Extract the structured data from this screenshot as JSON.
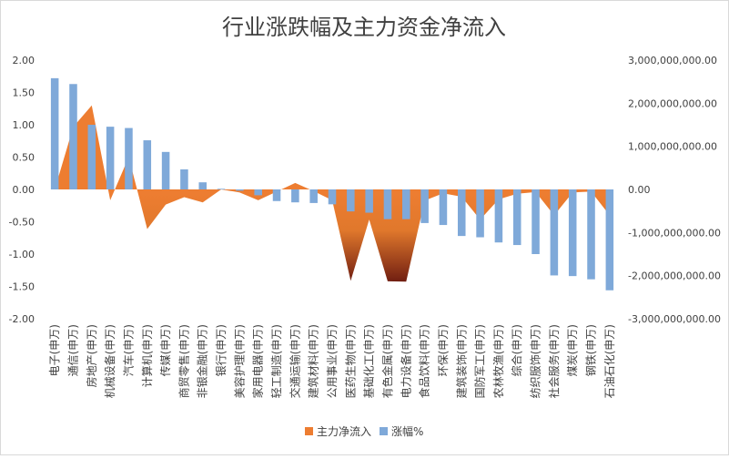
{
  "chart_data": {
    "type": "bar",
    "title": "行业涨跌幅及主力资金净流入",
    "categories": [
      "电子(申万)",
      "通信(申万)",
      "房地产(申万)",
      "机械设备(申万)",
      "汽车(申万)",
      "计算机(申万)",
      "传媒(申万)",
      "商贸零售(申万)",
      "非银金融(申万)",
      "银行(申万)",
      "美容护理(申万)",
      "家用电器(申万)",
      "轻工制造(申万)",
      "交通运输(申万)",
      "建筑材料(申万)",
      "公用事业(申万)",
      "医药生物(申万)",
      "基础化工(申万)",
      "有色金属(申万)",
      "电力设备(申万)",
      "食品饮料(申万)",
      "环保(申万)",
      "建筑装饰(申万)",
      "国防军工(申万)",
      "农林牧渔(申万)",
      "综合(申万)",
      "纺织服饰(申万)",
      "社会服务(申万)",
      "煤炭(申万)",
      "钢铁(申万)",
      "石油石化(申万)"
    ],
    "series": [
      {
        "name": "主力净流入",
        "chart_type": "area",
        "axis": "right",
        "color": "#ED7D31",
        "values": [
          0,
          1450000000,
          1950000000,
          -250000000,
          750000000,
          -920000000,
          -350000000,
          -180000000,
          -300000000,
          0,
          -70000000,
          -250000000,
          -50000000,
          150000000,
          -40000000,
          -250000000,
          -2120000000,
          -700000000,
          -2130000000,
          -2140000000,
          -260000000,
          -90000000,
          -170000000,
          -700000000,
          -230000000,
          -100000000,
          -60000000,
          -600000000,
          -70000000,
          -50000000,
          -600000000
        ]
      },
      {
        "name": "涨幅%",
        "chart_type": "bar",
        "axis": "left",
        "color": "#7FA9D9",
        "values": [
          1.72,
          1.63,
          1.0,
          0.97,
          0.95,
          0.76,
          0.58,
          0.31,
          0.11,
          0.01,
          -0.02,
          -0.09,
          -0.18,
          -0.2,
          -0.21,
          -0.23,
          -0.34,
          -0.36,
          -0.46,
          -0.46,
          -0.52,
          -0.55,
          -0.72,
          -0.74,
          -0.82,
          -0.86,
          -1.0,
          -1.33,
          -1.34,
          -1.39,
          -1.56
        ]
      }
    ],
    "left_axis": {
      "ylim": [
        -2.0,
        2.0
      ],
      "ticks": [
        2.0,
        1.5,
        1.0,
        0.5,
        0.0,
        -0.5,
        -1.0,
        -1.5,
        -2.0
      ],
      "tick_labels": [
        "2.00",
        "1.50",
        "1.00",
        "0.50",
        "0.00",
        "-0.50",
        "-1.00",
        "-1.50",
        "-2.00"
      ]
    },
    "right_axis": {
      "ylim": [
        -3000000000,
        3000000000
      ],
      "ticks": [
        3000000000,
        2000000000,
        1000000000,
        0,
        -1000000000,
        -2000000000,
        -3000000000
      ],
      "tick_labels": [
        "3,000,000,000.00",
        "2,000,000,000.00",
        "1,000,000,000.00",
        "0.00",
        "-1,000,000,000.00",
        "-2,000,000,000.00",
        "-3,000,000,000.00"
      ]
    },
    "grid": false,
    "legend": {
      "placement": "bottom",
      "entries": [
        "主力净流入",
        "涨幅%"
      ]
    }
  }
}
